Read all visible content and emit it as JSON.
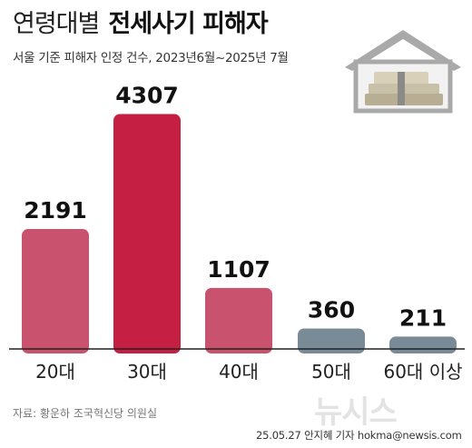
{
  "header": {
    "title_light": "연령대별",
    "title_bold": "전세사기 피해자",
    "subtitle": "서울 기준 피해자 인정 건수, 2023년6월~2025년 7월"
  },
  "chart_data": {
    "type": "bar",
    "categories": [
      "20대",
      "30대",
      "40대",
      "50대",
      "60대 이상"
    ],
    "values": [
      2191,
      4307,
      1107,
      360,
      211
    ],
    "value_labels": [
      "2191",
      "4307",
      "1107",
      "360",
      "211"
    ],
    "colors": [
      "#c9526f",
      "#c51f43",
      "#c9526f",
      "#7a8b98",
      "#7a8b98"
    ],
    "title": "",
    "xlabel": "",
    "ylabel": "",
    "ylim": [
      0,
      4400
    ],
    "grid": false,
    "legend": "none"
  },
  "illustration": {
    "icon": "house-with-money-icon",
    "roof_color": "#a9a9a9",
    "wall_color": "#f2f2f2",
    "money_color": "#c9c0a8"
  },
  "footer": {
    "source": "자료: 황운하 조국혁신당 의원실",
    "logo": "뉴시스",
    "credit": "25.05.27 안지혜 기자 hokma@newsis.com"
  }
}
